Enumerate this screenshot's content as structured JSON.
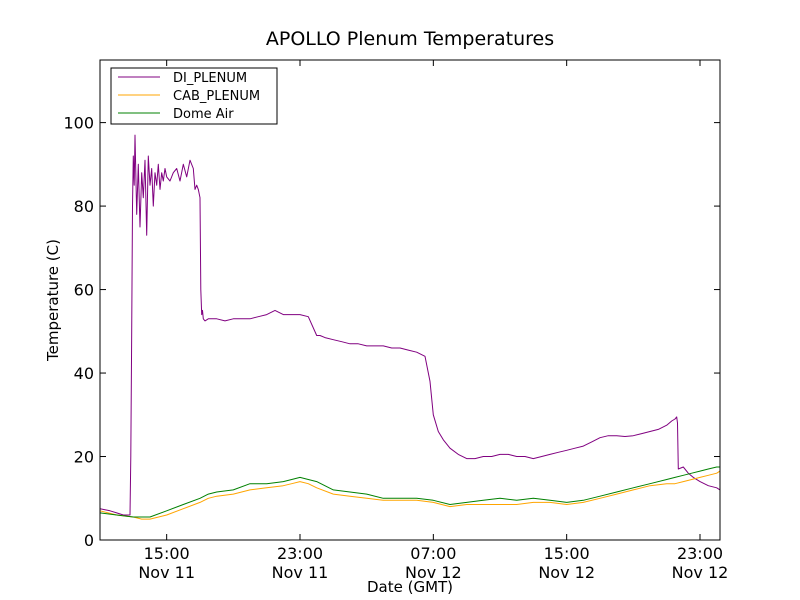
{
  "chart_data": {
    "type": "line",
    "title": "APOLLO Plenum Temperatures",
    "xlabel": "Date (GMT)",
    "ylabel": "Temperature (C)",
    "x_unit": "hours since Nov 11 11:00 GMT",
    "xlim": [
      0,
      37.2
    ],
    "ylim": [
      0,
      115
    ],
    "y_ticks": [
      0,
      20,
      40,
      60,
      80,
      100
    ],
    "x_ticks": [
      {
        "x": 4,
        "time": "15:00",
        "date": "Nov 11"
      },
      {
        "x": 12,
        "time": "23:00",
        "date": "Nov 11"
      },
      {
        "x": 20,
        "time": "07:00",
        "date": "Nov 12"
      },
      {
        "x": 28,
        "time": "15:00",
        "date": "Nov 12"
      },
      {
        "x": 36,
        "time": "23:00",
        "date": "Nov 12"
      }
    ],
    "grid": false,
    "legend_position": "top-left",
    "series": [
      {
        "name": "DI_PLENUM",
        "color": "#800080",
        "x": [
          0,
          0.6,
          1.0,
          1.4,
          1.6,
          1.8,
          1.85,
          1.9,
          1.95,
          2.0,
          2.05,
          2.1,
          2.2,
          2.3,
          2.4,
          2.5,
          2.6,
          2.7,
          2.8,
          2.9,
          3.0,
          3.1,
          3.2,
          3.3,
          3.4,
          3.5,
          3.6,
          3.7,
          3.8,
          3.9,
          4.0,
          4.2,
          4.4,
          4.6,
          4.8,
          5.0,
          5.2,
          5.4,
          5.6,
          5.7,
          5.8,
          5.9,
          6.0,
          6.05,
          6.1,
          6.15,
          6.2,
          6.3,
          6.5,
          7.0,
          7.5,
          8.0,
          8.5,
          9.0,
          9.5,
          10.0,
          10.5,
          11.0,
          11.5,
          12.0,
          12.5,
          13.0,
          13.2,
          13.5,
          14.0,
          14.5,
          15.0,
          15.5,
          16.0,
          16.5,
          17.0,
          17.5,
          18.0,
          18.5,
          19.0,
          19.5,
          19.8,
          20.0,
          20.3,
          20.6,
          21.0,
          21.5,
          22.0,
          22.5,
          23.0,
          23.5,
          24.0,
          24.5,
          25.0,
          25.5,
          26.0,
          26.5,
          27.0,
          27.5,
          28.0,
          28.5,
          29.0,
          29.5,
          30.0,
          30.5,
          31.0,
          31.5,
          32.0,
          32.5,
          33.0,
          33.5,
          34.0,
          34.3,
          34.5,
          34.6,
          34.65,
          34.7,
          35.0,
          35.3,
          35.6,
          36.0,
          36.5,
          37.0,
          37.2
        ],
        "values": [
          7.5,
          7,
          6.5,
          6,
          6,
          6,
          20,
          50,
          80,
          92,
          85,
          97,
          78,
          90,
          75,
          88,
          82,
          91,
          73,
          92,
          85,
          89,
          80,
          88,
          85,
          90,
          84,
          88,
          86,
          89,
          87,
          86,
          88,
          89,
          86,
          90,
          87,
          91,
          89,
          84,
          85,
          84,
          82,
          60,
          54,
          55,
          53,
          52.5,
          53,
          53,
          52.5,
          53,
          53,
          53,
          53.5,
          54,
          55,
          54,
          54,
          54,
          53.5,
          49,
          49,
          48.5,
          48,
          47.5,
          47,
          47,
          46.5,
          46.5,
          46.5,
          46,
          46,
          45.5,
          45,
          44,
          38,
          30,
          26,
          24,
          22,
          20.5,
          19.5,
          19.5,
          20,
          20,
          20.5,
          20.5,
          20,
          20,
          19.5,
          20,
          20.5,
          21,
          21.5,
          22,
          22.5,
          23.5,
          24.5,
          25,
          25,
          24.8,
          25,
          25.5,
          26,
          26.5,
          27.5,
          28.5,
          29,
          29.5,
          28,
          17,
          17.5,
          16,
          15,
          14,
          13,
          12.5,
          12
        ]
      },
      {
        "name": "CAB_PLENUM",
        "color": "#ffa500",
        "x": [
          0,
          1,
          2,
          2.5,
          3,
          4,
          5,
          6,
          6.5,
          7,
          8,
          9,
          10,
          11,
          11.5,
          12,
          12.5,
          13,
          14,
          15,
          16,
          17,
          18,
          19,
          20,
          21,
          22,
          23,
          24,
          25,
          26,
          27,
          28,
          29,
          30,
          31,
          32,
          33,
          34,
          34.5,
          35,
          35.5,
          36,
          36.5,
          37,
          37.2
        ],
        "values": [
          7,
          6,
          5.5,
          5,
          5,
          6,
          7.5,
          9,
          10,
          10.5,
          11,
          12,
          12.5,
          13,
          13.5,
          14,
          13.5,
          12.5,
          11,
          10.5,
          10,
          9.5,
          9.5,
          9.5,
          9,
          8,
          8.5,
          8.5,
          8.5,
          8.5,
          9,
          9,
          8.5,
          9,
          10,
          11,
          12,
          13,
          13.5,
          13.5,
          14,
          14.5,
          15,
          15.5,
          16,
          16.5
        ]
      },
      {
        "name": "Dome Air",
        "color": "#008000",
        "x": [
          0,
          1,
          2,
          2.5,
          3,
          4,
          5,
          6,
          6.5,
          7,
          8,
          9,
          10,
          11,
          11.5,
          12,
          12.5,
          13,
          14,
          15,
          16,
          17,
          18,
          19,
          20,
          21,
          22,
          23,
          24,
          25,
          26,
          27,
          28,
          29,
          30,
          31,
          32,
          33,
          34,
          34.5,
          35,
          35.5,
          36,
          36.5,
          37,
          37.2
        ],
        "values": [
          6.5,
          6,
          5.5,
          5.5,
          5.5,
          7,
          8.5,
          10,
          11,
          11.5,
          12,
          13.5,
          13.5,
          14,
          14.5,
          15,
          14.5,
          14,
          12,
          11.5,
          11,
          10,
          10,
          10,
          9.5,
          8.5,
          9,
          9.5,
          10,
          9.5,
          10,
          9.5,
          9,
          9.5,
          10.5,
          11.5,
          12.5,
          13.5,
          14.5,
          15,
          15.5,
          16,
          16.5,
          17,
          17.5,
          17.5
        ]
      }
    ]
  }
}
